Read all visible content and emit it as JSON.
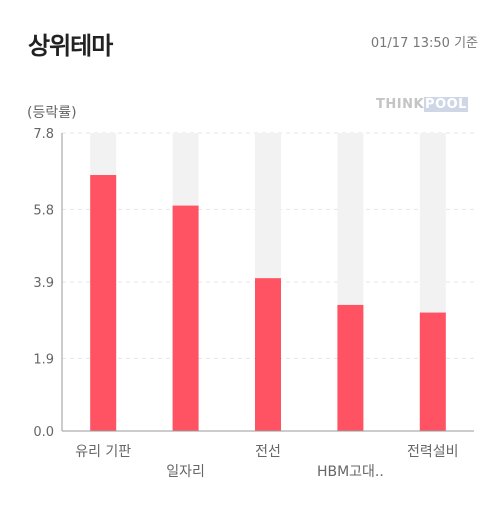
{
  "header": {
    "title": "상위테마",
    "timestamp": "01/17 13:50 기준"
  },
  "logo": {
    "part1": "THINK",
    "part2": "POOL"
  },
  "colors": {
    "bar": "#ff5262",
    "track": "#f2f2f2",
    "grid": "#e6e6e6",
    "axis": "#9a9a9a"
  },
  "chart_data": {
    "type": "bar",
    "title": "상위테마",
    "ylabel": "(등락률)",
    "categories": [
      "유리 기판",
      "일자리",
      "전선",
      "HBM고대..",
      "전력설비"
    ],
    "values": [
      6.7,
      5.9,
      4.0,
      3.3,
      3.1
    ],
    "yticks": [
      "0.0",
      "1.9",
      "3.9",
      "5.8",
      "7.8"
    ],
    "ylim": [
      0,
      7.8
    ],
    "grid": true
  }
}
